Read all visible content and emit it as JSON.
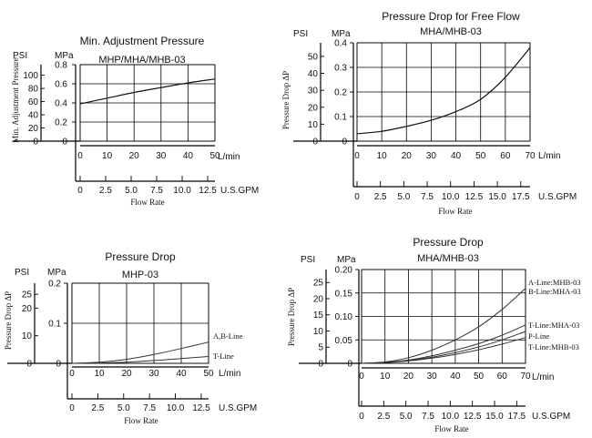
{
  "chart_data": [
    {
      "type": "line",
      "title": "Min. Adjustment Pressure",
      "subtitle": "MHP/MHA/MHB-03",
      "ylabel": "Min. Adjustment Pressure",
      "xlabel": "Flow Rate",
      "y_unit_left": "PSI",
      "y_unit_right": "MPa",
      "x_unit_top": "L/min",
      "x_unit_bottom": "U.S.GPM",
      "psi_ticks": [
        "0",
        "20",
        "40",
        "60",
        "80",
        "100"
      ],
      "mpa_ticks": [
        "0",
        "0.2",
        "0.4",
        "0.6",
        "0.8"
      ],
      "x_ticks": [
        "0",
        "10",
        "20",
        "30",
        "40",
        "50"
      ],
      "gpm_ticks": [
        "0",
        "2.5",
        "5.0",
        "7.5",
        "10.0",
        "12.5"
      ],
      "xlim": [
        0,
        50
      ],
      "ylim": [
        0,
        0.8
      ],
      "series": [
        {
          "x": [
            0,
            10,
            20,
            30,
            40,
            50
          ],
          "values": [
            0.39,
            0.45,
            0.51,
            0.56,
            0.61,
            0.65
          ]
        }
      ]
    },
    {
      "type": "line",
      "title": "Pressure Drop for Free Flow",
      "subtitle": "MHA/MHB-03",
      "ylabel": "Pressure Drop ΔP",
      "xlabel": "Flow Rate",
      "y_unit_left": "PSI",
      "y_unit_right": "MPa",
      "x_unit_top": "L/min",
      "x_unit_bottom": "U.S.GPM",
      "psi_ticks": [
        "0",
        "10",
        "20",
        "30",
        "40",
        "50"
      ],
      "mpa_ticks": [
        "0",
        "0.1",
        "0.2",
        "0.3",
        "0.4"
      ],
      "x_ticks": [
        "0",
        "10",
        "20",
        "30",
        "40",
        "50",
        "60",
        "70"
      ],
      "gpm_ticks": [
        "0",
        "2.5",
        "5.0",
        "7.5",
        "10.0",
        "12.5",
        "15.0",
        "17.5"
      ],
      "xlim": [
        0,
        70
      ],
      "ylim": [
        0,
        0.4
      ],
      "series": [
        {
          "x": [
            0,
            10,
            20,
            30,
            40,
            50,
            60,
            70
          ],
          "values": [
            0.03,
            0.04,
            0.06,
            0.085,
            0.12,
            0.17,
            0.26,
            0.38
          ]
        }
      ]
    },
    {
      "type": "line",
      "title": "Pressure Drop",
      "subtitle": "MHP-03",
      "ylabel": "Pressure Drop ΔP",
      "xlabel": "Flow Rate",
      "y_unit_left": "PSI",
      "y_unit_right": "MPa",
      "x_unit_top": "L/min",
      "x_unit_bottom": "U.S.GPM",
      "psi_ticks": [
        "0",
        "10",
        "20",
        "25"
      ],
      "mpa_ticks": [
        "0",
        "0.1",
        "0.2"
      ],
      "x_ticks": [
        "0",
        "10",
        "20",
        "30",
        "40",
        "50"
      ],
      "gpm_ticks": [
        "0",
        "2.5",
        "5.0",
        "7.5",
        "10.0",
        "12.5"
      ],
      "xlim": [
        0,
        50
      ],
      "ylim": [
        0,
        0.2
      ],
      "series": [
        {
          "name": "A,B-Line",
          "x": [
            0,
            10,
            20,
            30,
            40,
            50
          ],
          "values": [
            0,
            0.003,
            0.01,
            0.022,
            0.037,
            0.053
          ]
        },
        {
          "name": "T-Line",
          "x": [
            0,
            10,
            20,
            30,
            40,
            50
          ],
          "values": [
            0,
            0.001,
            0.003,
            0.007,
            0.012,
            0.017
          ]
        }
      ]
    },
    {
      "type": "line",
      "title": "Pressure Drop",
      "subtitle": "MHA/MHB-03",
      "ylabel": "Pressure Drop ΔP",
      "xlabel": "Flow Rate",
      "y_unit_left": "PSI",
      "y_unit_right": "MPa",
      "x_unit_top": "L/min",
      "x_unit_bottom": "U.S.GPM",
      "psi_ticks": [
        "0",
        "5",
        "10",
        "15",
        "20",
        "25"
      ],
      "mpa_ticks": [
        "0",
        "0.05",
        "0.10",
        "0.15",
        "0.20"
      ],
      "x_ticks": [
        "0",
        "10",
        "20",
        "30",
        "40",
        "50",
        "60",
        "70"
      ],
      "gpm_ticks": [
        "0",
        "2.5",
        "5.0",
        "7.5",
        "10.0",
        "12.5",
        "15.0",
        "17.5"
      ],
      "xlim": [
        0,
        70
      ],
      "ylim": [
        0,
        0.2
      ],
      "series": [
        {
          "name": "A-Line:MHB-03",
          "x": [
            0,
            10,
            20,
            30,
            40,
            50,
            60,
            70
          ],
          "values": [
            0,
            0.003,
            0.012,
            0.028,
            0.05,
            0.078,
            0.115,
            0.16
          ]
        },
        {
          "name": "B-Line:MHA-03",
          "x": [],
          "values": []
        },
        {
          "name": "T-Line:MHA-03",
          "x": [
            0,
            10,
            20,
            30,
            40,
            50,
            60,
            70
          ],
          "values": [
            0,
            0.002,
            0.007,
            0.016,
            0.028,
            0.042,
            0.06,
            0.082
          ]
        },
        {
          "name": "P-Line",
          "x": [
            0,
            10,
            20,
            30,
            40,
            50,
            60,
            70
          ],
          "values": [
            0,
            0.002,
            0.006,
            0.013,
            0.023,
            0.035,
            0.05,
            0.068
          ]
        },
        {
          "name": "T-Line:MHB-03",
          "x": [
            0,
            10,
            20,
            30,
            40,
            50,
            60,
            70
          ],
          "values": [
            0,
            0.0015,
            0.005,
            0.011,
            0.019,
            0.029,
            0.041,
            0.055
          ]
        }
      ]
    }
  ]
}
